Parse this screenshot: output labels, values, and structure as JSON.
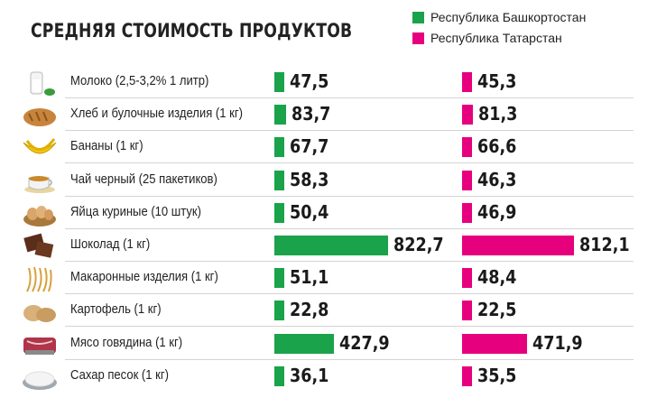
{
  "colors": {
    "bashkortostan": "#1aa34a",
    "tatarstan": "#e6007e"
  },
  "chart_data": {
    "type": "bar",
    "title": "СРЕДНЯЯ СТОИМОСТЬ ПРОДУКТОВ",
    "categories": [
      "Молоко (2,5-3,2% 1 литр)",
      "Хлеб и булочные изделия (1 кг)",
      "Бананы (1 кг)",
      "Чай черный (25 пакетиков)",
      "Яйца куриные (10 штук)",
      "Шоколад (1 кг)",
      "Макаронные изделия (1 кг)",
      "Картофель (1 кг)",
      "Мясо говядина (1 кг)",
      "Сахар песок (1 кг)"
    ],
    "icons": [
      "milk-icon",
      "bread-icon",
      "bananas-icon",
      "tea-icon",
      "eggs-icon",
      "chocolate-icon",
      "pasta-icon",
      "potato-icon",
      "beef-icon",
      "sugar-icon"
    ],
    "series": [
      {
        "name": "Республика Башкортостан",
        "color": "#1aa34a",
        "values": [
          47.5,
          83.7,
          67.7,
          58.3,
          50.4,
          822.7,
          51.1,
          22.8,
          427.9,
          36.1
        ],
        "labels": [
          "47,5",
          "83,7",
          "67,7",
          "58,3",
          "50,4",
          "822,7",
          "51,1",
          "22,8",
          "427,9",
          "36,1"
        ]
      },
      {
        "name": "Республика Татарстан",
        "color": "#e6007e",
        "values": [
          45.3,
          81.3,
          66.6,
          46.3,
          46.9,
          812.1,
          48.4,
          22.5,
          471.9,
          35.5
        ],
        "labels": [
          "45,3",
          "81,3",
          "66,6",
          "46,3",
          "46,9",
          "812,1",
          "48,4",
          "22,5",
          "471,9",
          "35,5"
        ]
      }
    ],
    "legend_position": "top-right",
    "grid": false
  }
}
